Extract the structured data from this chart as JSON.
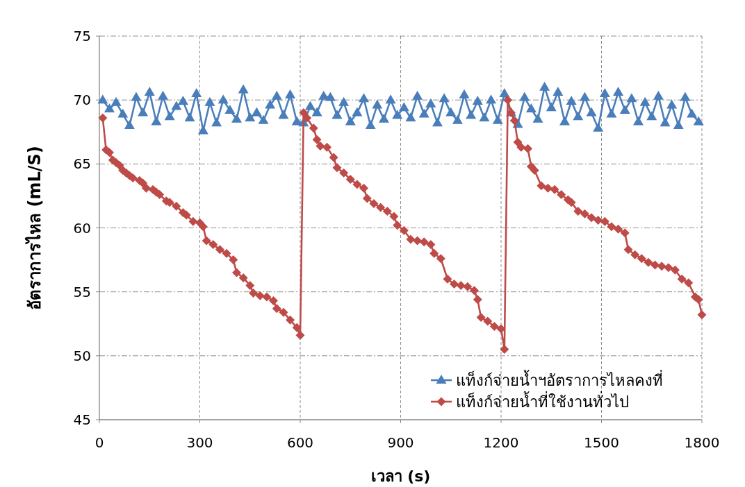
{
  "chart_data": {
    "type": "line",
    "xlabel": "เวลา (s)",
    "ylabel": "อัตราการไหล (mL/S)",
    "xlim": [
      0,
      1800
    ],
    "xticks": [
      0,
      300,
      600,
      900,
      1200,
      1500,
      1800
    ],
    "ylim": [
      45,
      75
    ],
    "yticks": [
      45,
      50,
      55,
      60,
      65,
      70,
      75
    ],
    "grid": true,
    "legend": "bottom right",
    "line_style": "solid",
    "series": [
      {
        "name": "แท็งก์จ่ายน้ำฯอัตราการไหลคงที่",
        "color": "#4a7ebb",
        "marker": "triangle",
        "x": [
          10,
          30,
          50,
          70,
          90,
          110,
          130,
          150,
          170,
          190,
          210,
          230,
          250,
          270,
          290,
          310,
          330,
          350,
          370,
          390,
          410,
          430,
          450,
          470,
          490,
          510,
          530,
          550,
          570,
          590,
          610,
          630,
          650,
          670,
          690,
          710,
          730,
          750,
          770,
          790,
          810,
          830,
          850,
          870,
          890,
          910,
          930,
          950,
          970,
          990,
          1010,
          1030,
          1050,
          1070,
          1090,
          1110,
          1130,
          1150,
          1170,
          1190,
          1210,
          1230,
          1250,
          1270,
          1290,
          1310,
          1330,
          1350,
          1370,
          1390,
          1410,
          1430,
          1450,
          1470,
          1490,
          1510,
          1530,
          1550,
          1570,
          1590,
          1610,
          1630,
          1650,
          1670,
          1690,
          1710,
          1730,
          1750,
          1770,
          1790
        ],
        "values": [
          70.0,
          69.3,
          69.8,
          68.9,
          68.0,
          70.2,
          69.0,
          70.6,
          68.3,
          70.3,
          68.7,
          69.5,
          69.9,
          68.6,
          70.5,
          67.6,
          69.8,
          68.2,
          70.0,
          69.2,
          68.5,
          70.8,
          68.6,
          69.0,
          68.4,
          69.6,
          70.3,
          68.8,
          70.4,
          68.3,
          68.2,
          69.5,
          69.0,
          70.3,
          70.2,
          68.8,
          69.8,
          68.3,
          69.0,
          70.1,
          68.0,
          69.6,
          68.5,
          70.0,
          68.8,
          69.4,
          68.6,
          70.3,
          68.9,
          69.7,
          68.2,
          70.1,
          69.0,
          68.4,
          70.4,
          68.8,
          69.9,
          68.6,
          70.0,
          68.4,
          70.5,
          69.0,
          68.1,
          70.2,
          69.3,
          68.5,
          71.0,
          69.4,
          70.6,
          68.3,
          69.9,
          68.7,
          70.2,
          69.0,
          67.8,
          70.5,
          68.9,
          70.6,
          69.2,
          70.1,
          68.3,
          69.8,
          68.7,
          70.3,
          68.2,
          69.6,
          68.0,
          70.2,
          68.9,
          68.3
        ]
      },
      {
        "name": "แท็งก์จ่ายน้ำที่ใช้งานทั่วไป",
        "color": "#be4b48",
        "marker": "diamond",
        "x": [
          10,
          20,
          30,
          40,
          50,
          60,
          70,
          80,
          90,
          100,
          120,
          130,
          140,
          160,
          170,
          180,
          200,
          210,
          230,
          250,
          260,
          280,
          300,
          310,
          320,
          340,
          360,
          380,
          400,
          410,
          430,
          450,
          460,
          480,
          500,
          520,
          530,
          550,
          570,
          590,
          600,
          610,
          620,
          640,
          650,
          660,
          680,
          700,
          710,
          730,
          750,
          770,
          790,
          800,
          820,
          840,
          860,
          880,
          890,
          910,
          930,
          950,
          970,
          990,
          1000,
          1020,
          1040,
          1060,
          1080,
          1100,
          1120,
          1130,
          1140,
          1160,
          1180,
          1200,
          1210,
          1220,
          1230,
          1240,
          1250,
          1260,
          1280,
          1290,
          1300,
          1320,
          1340,
          1360,
          1380,
          1400,
          1410,
          1430,
          1450,
          1470,
          1490,
          1510,
          1530,
          1550,
          1570,
          1580,
          1600,
          1620,
          1640,
          1660,
          1680,
          1700,
          1720,
          1740,
          1760,
          1780,
          1790,
          1800
        ],
        "values": [
          68.6,
          66.1,
          65.9,
          65.3,
          65.1,
          64.9,
          64.5,
          64.3,
          64.1,
          63.9,
          63.7,
          63.5,
          63.1,
          63.0,
          62.8,
          62.6,
          62.1,
          62.0,
          61.7,
          61.2,
          61.0,
          60.5,
          60.4,
          60.1,
          59.0,
          58.7,
          58.3,
          58.0,
          57.5,
          56.5,
          56.1,
          55.5,
          54.9,
          54.7,
          54.6,
          54.3,
          53.7,
          53.4,
          52.8,
          52.2,
          51.6,
          69.0,
          68.6,
          67.8,
          66.9,
          66.4,
          66.3,
          65.5,
          64.7,
          64.3,
          63.8,
          63.4,
          63.1,
          62.3,
          61.9,
          61.6,
          61.3,
          60.9,
          60.2,
          59.8,
          59.1,
          59.0,
          58.9,
          58.7,
          58.0,
          57.6,
          56.0,
          55.6,
          55.5,
          55.4,
          55.1,
          54.4,
          53.0,
          52.7,
          52.3,
          52.1,
          50.5,
          70.0,
          69.0,
          68.4,
          66.7,
          66.3,
          66.2,
          64.8,
          64.5,
          63.3,
          63.1,
          63.0,
          62.6,
          62.2,
          62.0,
          61.3,
          61.1,
          60.8,
          60.6,
          60.5,
          60.1,
          59.9,
          59.6,
          58.3,
          57.9,
          57.6,
          57.3,
          57.1,
          57.0,
          56.9,
          56.7,
          56.0,
          55.7,
          54.6,
          54.4,
          53.2
        ]
      }
    ]
  }
}
